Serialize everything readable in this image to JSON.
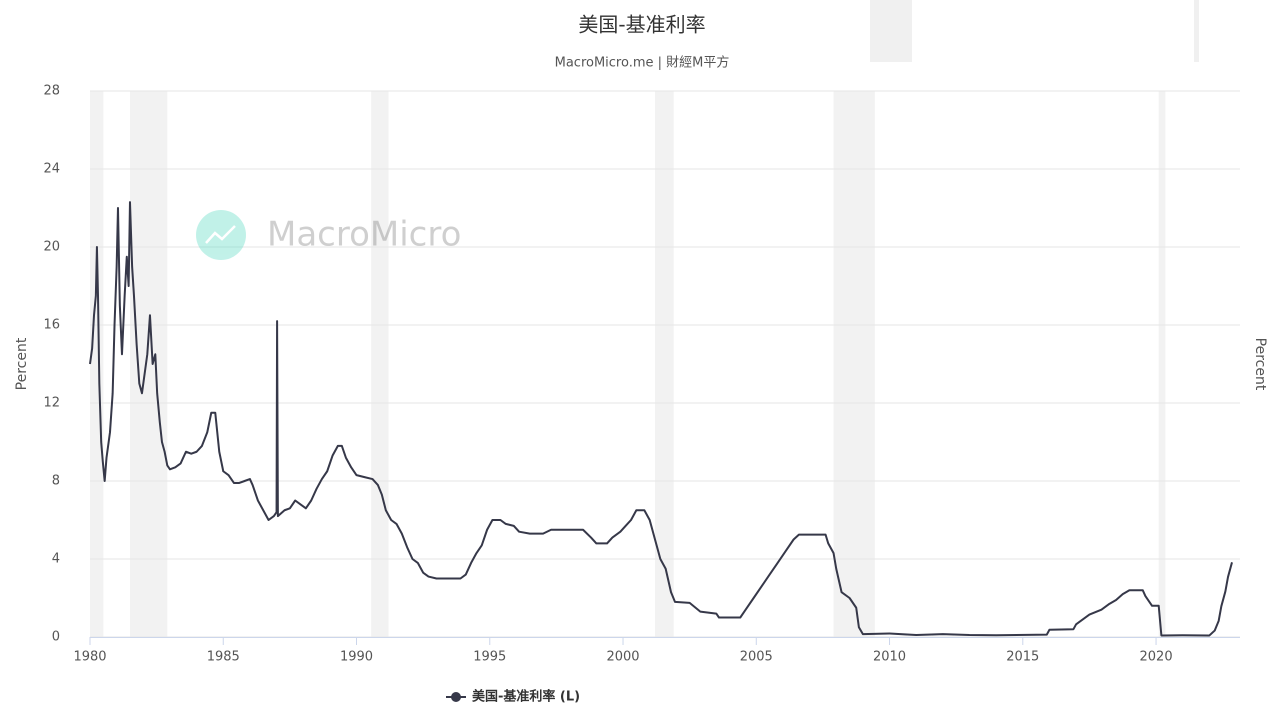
{
  "chart_data": {
    "type": "line",
    "title": "美国-基准利率",
    "subtitle": "MacroMicro.me | 財經M平方",
    "watermark": "MacroMicro",
    "y_label": "Percent",
    "y2_label": "Percent",
    "x": [
      1980.0,
      1980.08,
      1980.15,
      1980.22,
      1980.26,
      1980.3,
      1980.35,
      1980.42,
      1980.48,
      1980.55,
      1980.62,
      1980.75,
      1980.85,
      1980.92,
      1981.0,
      1981.05,
      1981.12,
      1981.2,
      1981.3,
      1981.38,
      1981.45,
      1981.5,
      1981.58,
      1981.65,
      1981.75,
      1981.85,
      1981.95,
      1982.05,
      1982.15,
      1982.25,
      1982.35,
      1982.45,
      1982.52,
      1982.62,
      1982.7,
      1982.8,
      1982.9,
      1983.0,
      1983.2,
      1983.4,
      1983.6,
      1983.8,
      1984.0,
      1984.2,
      1984.4,
      1984.55,
      1984.7,
      1984.85,
      1985.0,
      1985.2,
      1985.4,
      1985.6,
      1985.8,
      1986.0,
      1986.1,
      1986.3,
      1986.5,
      1986.7,
      1986.9,
      1987.0,
      1987.02,
      1987.05,
      1987.3,
      1987.5,
      1987.7,
      1987.9,
      1988.1,
      1988.3,
      1988.5,
      1988.7,
      1988.9,
      1989.1,
      1989.3,
      1989.45,
      1989.6,
      1989.8,
      1990.0,
      1990.3,
      1990.6,
      1990.8,
      1990.95,
      1991.1,
      1991.3,
      1991.5,
      1991.7,
      1991.9,
      1992.1,
      1992.3,
      1992.5,
      1992.7,
      1993.0,
      1993.5,
      1993.9,
      1994.1,
      1994.3,
      1994.5,
      1994.7,
      1994.9,
      1995.1,
      1995.4,
      1995.6,
      1995.9,
      1996.1,
      1996.5,
      1997.0,
      1997.3,
      1997.7,
      1998.0,
      1998.5,
      1998.8,
      1999.0,
      1999.4,
      1999.6,
      1999.9,
      2000.1,
      2000.3,
      2000.5,
      2000.8,
      2001.0,
      2001.2,
      2001.4,
      2001.6,
      2001.8,
      2001.95,
      2002.5,
      2002.9,
      2003.5,
      2003.6,
      2004.4,
      2004.6,
      2004.9,
      2005.2,
      2005.5,
      2005.8,
      2006.1,
      2006.4,
      2006.6,
      2007.0,
      2007.6,
      2007.7,
      2007.9,
      2008.0,
      2008.2,
      2008.5,
      2008.75,
      2008.85,
      2009.0,
      2010.0,
      2011.0,
      2012.0,
      2013.0,
      2014.0,
      2015.9,
      2016.0,
      2016.9,
      2017.0,
      2017.25,
      2017.5,
      2017.95,
      2018.25,
      2018.5,
      2018.75,
      2019.0,
      2019.5,
      2019.6,
      2019.85,
      2020.1,
      2020.2,
      2021.0,
      2022.0,
      2022.2,
      2022.35,
      2022.45,
      2022.6,
      2022.7,
      2022.85
    ],
    "series": [
      {
        "name": "美国-基准利率 (L)",
        "color": "#363849",
        "values": [
          14.0,
          14.8,
          16.5,
          17.5,
          20.0,
          17.5,
          13.0,
          10.0,
          9.0,
          8.0,
          9.2,
          10.5,
          12.5,
          16.0,
          19.0,
          22.0,
          17.0,
          14.5,
          17.5,
          19.5,
          18.0,
          22.3,
          19.0,
          17.5,
          15.0,
          13.0,
          12.5,
          13.5,
          14.5,
          16.5,
          14.0,
          14.5,
          12.5,
          11.0,
          10.0,
          9.5,
          8.8,
          8.6,
          8.7,
          8.9,
          9.5,
          9.4,
          9.5,
          9.8,
          10.5,
          11.5,
          11.5,
          9.5,
          8.5,
          8.3,
          7.9,
          7.9,
          8.0,
          8.1,
          7.8,
          7.0,
          6.5,
          6.0,
          6.2,
          6.4,
          16.2,
          6.2,
          6.5,
          6.6,
          7.0,
          6.8,
          6.6,
          7.0,
          7.6,
          8.1,
          8.5,
          9.3,
          9.8,
          9.8,
          9.2,
          8.7,
          8.3,
          8.2,
          8.1,
          7.8,
          7.3,
          6.5,
          6.0,
          5.8,
          5.3,
          4.6,
          4.0,
          3.8,
          3.3,
          3.1,
          3.0,
          3.0,
          3.0,
          3.2,
          3.8,
          4.3,
          4.7,
          5.5,
          6.0,
          6.0,
          5.8,
          5.7,
          5.4,
          5.3,
          5.3,
          5.5,
          5.5,
          5.5,
          5.5,
          5.1,
          4.8,
          4.8,
          5.1,
          5.4,
          5.7,
          6.0,
          6.5,
          6.5,
          6.0,
          5.0,
          4.0,
          3.5,
          2.3,
          1.8,
          1.75,
          1.3,
          1.2,
          1.0,
          1.0,
          1.4,
          2.0,
          2.6,
          3.2,
          3.8,
          4.4,
          5.0,
          5.25,
          5.25,
          5.25,
          4.8,
          4.3,
          3.5,
          2.3,
          2.0,
          1.5,
          0.5,
          0.15,
          0.18,
          0.1,
          0.15,
          0.1,
          0.09,
          0.12,
          0.37,
          0.4,
          0.65,
          0.9,
          1.15,
          1.4,
          1.7,
          1.9,
          2.2,
          2.4,
          2.4,
          2.1,
          1.6,
          1.6,
          0.08,
          0.09,
          0.08,
          0.33,
          0.83,
          1.58,
          2.33,
          3.08,
          3.83
        ]
      }
    ],
    "recessions": [
      [
        1980.0,
        1980.5
      ],
      [
        1981.5,
        1982.9
      ],
      [
        1990.55,
        1991.2
      ],
      [
        2001.2,
        2001.9
      ],
      [
        2007.9,
        2009.45
      ],
      [
        2020.1,
        2020.35
      ]
    ],
    "recession_color": "#f2f2f2",
    "xlim": [
      1980,
      2023.15
    ],
    "ylim": [
      0,
      28
    ],
    "xticks": [
      1980,
      1985,
      1990,
      1995,
      2000,
      2005,
      2010,
      2015,
      2020
    ],
    "yticks": [
      0,
      4,
      8,
      12,
      16,
      20,
      24,
      28
    ],
    "grid": true
  }
}
